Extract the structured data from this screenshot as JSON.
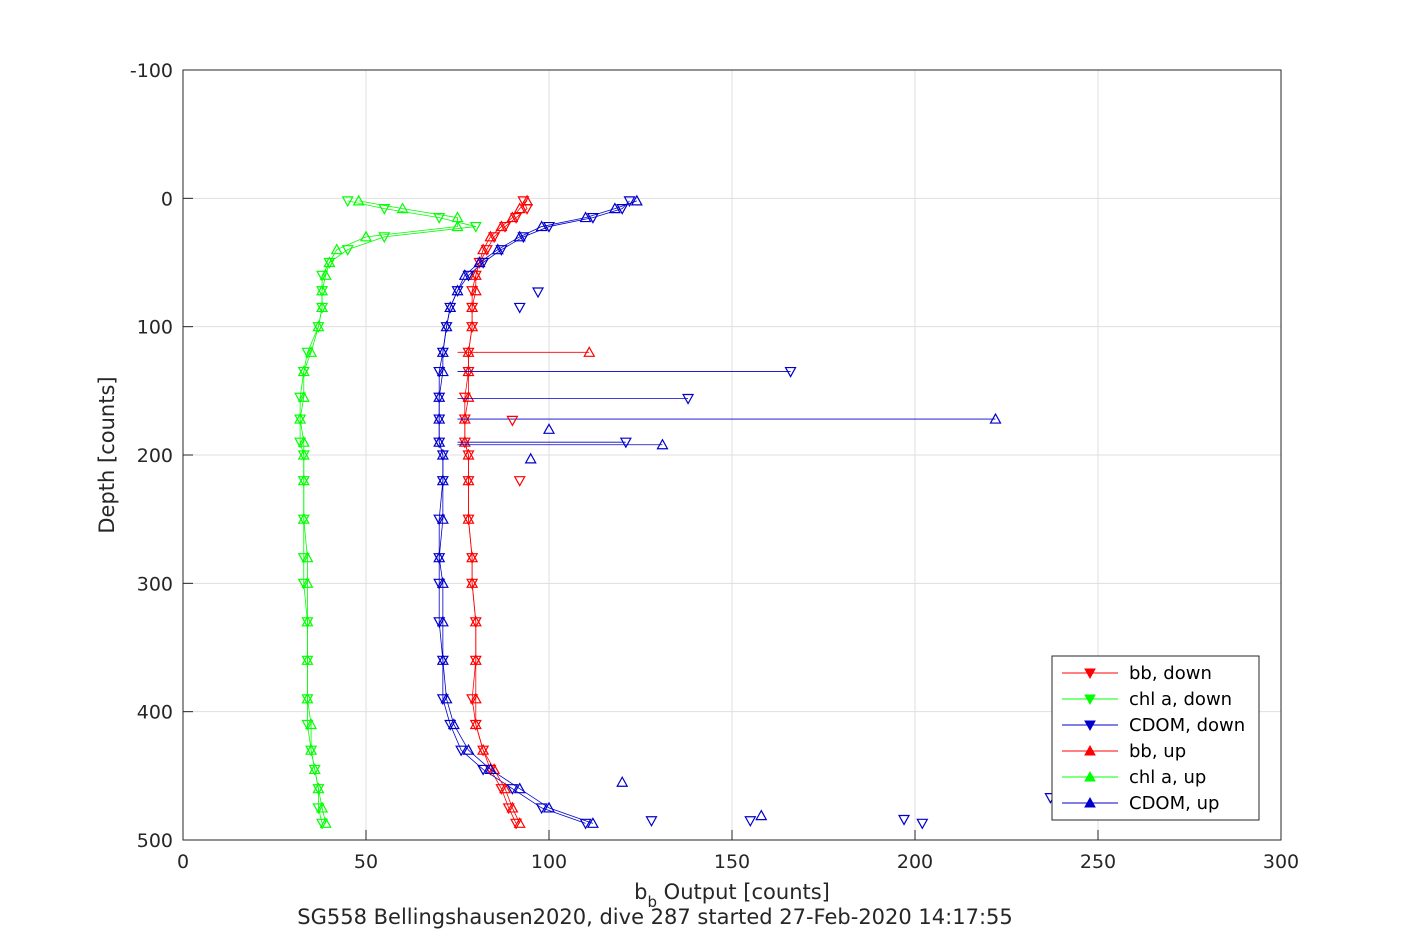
{
  "chart_data": {
    "type": "scatter",
    "xlabel": "b_b Output [counts]",
    "xlabel_main": "b",
    "xlabel_sub": "b",
    "xlabel_rest": " Output [counts]",
    "ylabel": "Depth [counts]",
    "subtitle": "SG558 Bellingshausen2020, dive 287 started 27-Feb-2020 14:17:55",
    "xlim": [
      0,
      300
    ],
    "ylim": [
      -100,
      500
    ],
    "y_reversed": true,
    "grid": true,
    "legend_position": "bottom-right",
    "x_ticks": [
      "0",
      "50",
      "100",
      "150",
      "200",
      "250",
      "300"
    ],
    "y_ticks": [
      "-100",
      "0",
      "100",
      "200",
      "300",
      "400",
      "500"
    ],
    "depths": [
      2,
      8,
      15,
      22,
      30,
      40,
      50,
      60,
      72,
      85,
      100,
      120,
      135,
      155,
      172,
      190,
      200,
      220,
      250,
      280,
      300,
      330,
      360,
      390,
      410,
      430,
      445,
      460,
      475,
      487
    ],
    "series": [
      {
        "name": "bb, down",
        "color": "#ff0000",
        "marker": "triangle-down",
        "x": [
          93,
          94,
          91,
          88,
          85,
          83,
          81,
          80,
          79,
          79,
          79,
          78,
          78,
          77,
          77,
          77,
          78,
          78,
          78,
          79,
          79,
          80,
          80,
          79,
          80,
          82,
          84,
          87,
          89,
          91
        ]
      },
      {
        "name": "chl a, down",
        "color": "#00ff00",
        "marker": "triangle-down",
        "x": [
          45,
          55,
          70,
          80,
          55,
          45,
          40,
          38,
          38,
          38,
          37,
          34,
          33,
          32,
          32,
          32,
          33,
          33,
          33,
          33,
          33,
          34,
          34,
          34,
          34,
          35,
          36,
          37,
          37,
          38
        ]
      },
      {
        "name": "CDOM, down",
        "color": "#0000cc",
        "marker": "triangle-down",
        "x": [
          122,
          120,
          112,
          100,
          93,
          87,
          82,
          78,
          75,
          73,
          72,
          71,
          70,
          70,
          70,
          70,
          71,
          71,
          70,
          70,
          70,
          70,
          71,
          71,
          73,
          76,
          82,
          90,
          98,
          110
        ]
      },
      {
        "name": "bb, up",
        "color": "#ff0000",
        "marker": "triangle-up",
        "x": [
          94,
          92,
          90,
          87,
          84,
          82,
          81,
          80,
          80,
          79,
          79,
          78,
          78,
          78,
          77,
          77,
          78,
          78,
          78,
          79,
          79,
          80,
          80,
          80,
          80,
          82,
          85,
          88,
          90,
          92
        ]
      },
      {
        "name": "chl a, up",
        "color": "#00ff00",
        "marker": "triangle-up",
        "x": [
          48,
          60,
          75,
          75,
          50,
          42,
          40,
          39,
          38,
          38,
          37,
          35,
          33,
          33,
          32,
          33,
          33,
          33,
          33,
          34,
          34,
          34,
          34,
          34,
          35,
          35,
          36,
          37,
          38,
          39
        ]
      },
      {
        "name": "CDOM, up",
        "color": "#0000cc",
        "marker": "triangle-up",
        "x": [
          124,
          118,
          110,
          98,
          92,
          86,
          81,
          77,
          75,
          73,
          72,
          71,
          71,
          70,
          70,
          70,
          71,
          71,
          71,
          70,
          71,
          71,
          71,
          72,
          74,
          78,
          84,
          92,
          100,
          112
        ]
      }
    ],
    "outliers": [
      {
        "series": "bb, up",
        "x": 111,
        "y": 120
      },
      {
        "series": "CDOM, down",
        "x": 166,
        "y": 135
      },
      {
        "series": "CDOM, down",
        "x": 138,
        "y": 156
      },
      {
        "series": "CDOM, up",
        "x": 222,
        "y": 172
      },
      {
        "series": "CDOM, down",
        "x": 121,
        "y": 190
      },
      {
        "series": "CDOM, up",
        "x": 131,
        "y": 192
      },
      {
        "series": "CDOM, up",
        "x": 100,
        "y": 180
      },
      {
        "series": "bb, down",
        "x": 90,
        "y": 173
      },
      {
        "series": "bb, down",
        "x": 92,
        "y": 220
      },
      {
        "series": "CDOM, up",
        "x": 95,
        "y": 203
      },
      {
        "series": "CDOM, down",
        "x": 97,
        "y": 73
      },
      {
        "series": "CDOM, down",
        "x": 92,
        "y": 85
      },
      {
        "series": "CDOM, down",
        "x": 155,
        "y": 485
      },
      {
        "series": "CDOM, up",
        "x": 158,
        "y": 481
      },
      {
        "series": "CDOM, down",
        "x": 197,
        "y": 484
      },
      {
        "series": "CDOM, down",
        "x": 202,
        "y": 487
      },
      {
        "series": "CDOM, down",
        "x": 128,
        "y": 485
      },
      {
        "series": "CDOM, up",
        "x": 120,
        "y": 455
      },
      {
        "series": "CDOM, down",
        "x": 237,
        "y": 467
      }
    ]
  }
}
